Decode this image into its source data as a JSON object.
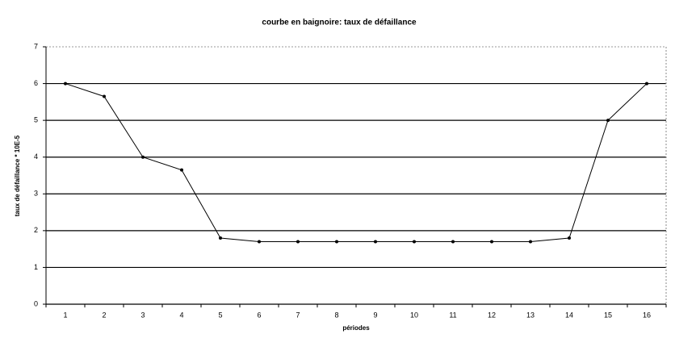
{
  "chart_data": {
    "type": "line",
    "title": "courbe en baignoire: taux de défaillance",
    "x_label": "périodes",
    "y_label": "taux de défaillance * 10E-5",
    "categories": [
      "1",
      "2",
      "3",
      "4",
      "5",
      "6",
      "7",
      "8",
      "9",
      "10",
      "11",
      "12",
      "13",
      "14",
      "15",
      "16"
    ],
    "series": [
      {
        "name": "taux de défaillance",
        "color": "#000000",
        "values": [
          6,
          5.65,
          4,
          3.65,
          1.8,
          1.7,
          1.7,
          1.7,
          1.7,
          1.7,
          1.7,
          1.7,
          1.7,
          1.8,
          5,
          6
        ]
      }
    ],
    "ylim": [
      0,
      7
    ],
    "yticks": [
      0,
      1,
      2,
      3,
      4,
      5,
      6,
      7
    ],
    "grid": true
  }
}
